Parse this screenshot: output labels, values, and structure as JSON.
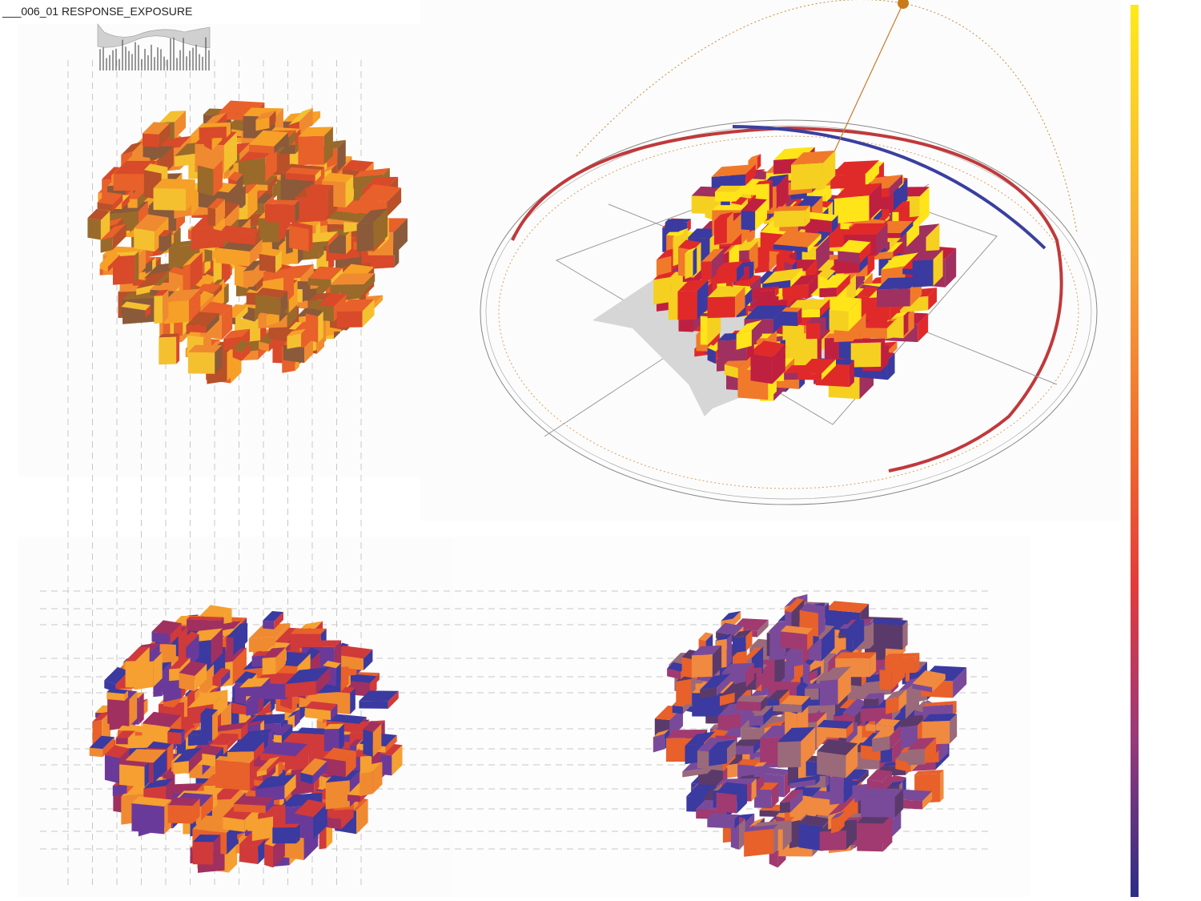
{
  "title": "___006_01 RESPONSE_EXPOSURE"
}
